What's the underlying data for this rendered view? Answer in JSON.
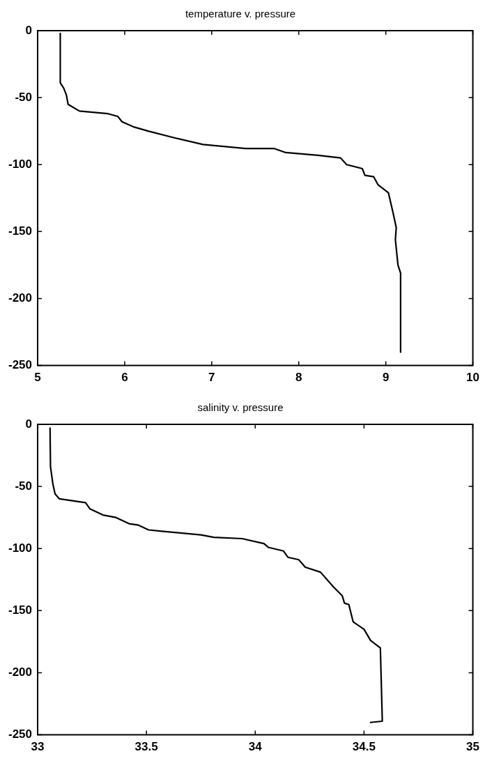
{
  "chart_data": [
    {
      "type": "line",
      "title": "temperature v. pressure",
      "x": [
        5.26,
        5.26,
        5.3,
        5.33,
        5.35,
        5.48,
        5.81,
        5.92,
        5.97,
        6.11,
        6.27,
        6.57,
        6.9,
        7.39,
        7.72,
        7.85,
        8.22,
        8.48,
        8.55,
        8.73,
        8.76,
        8.86,
        8.91,
        9.03,
        9.08,
        9.12,
        9.11,
        9.14,
        9.17,
        9.17
      ],
      "series": [
        {
          "color": "#000000",
          "values": [
            -2,
            -39,
            -43,
            -48,
            -55,
            -60,
            -62,
            -64,
            -68,
            -72,
            -75,
            -80,
            -85,
            -88,
            -88,
            -91,
            -93,
            -95,
            -100,
            -103,
            -108,
            -109,
            -115,
            -121,
            -135,
            -147,
            -156,
            -175,
            -181,
            -240
          ]
        }
      ],
      "xlim": [
        5,
        10
      ],
      "xticks": [
        5,
        6,
        7,
        8,
        9,
        10
      ],
      "ylim": [
        -250,
        0
      ],
      "yticks": [
        -250,
        -200,
        -150,
        -100,
        -50,
        0
      ]
    },
    {
      "type": "line",
      "title": "salinity v. pressure",
      "x": [
        33.057,
        33.059,
        33.07,
        33.08,
        33.1,
        33.22,
        33.24,
        33.3,
        33.36,
        33.42,
        33.46,
        33.51,
        33.57,
        33.63,
        33.75,
        33.81,
        33.94,
        34.04,
        34.06,
        34.13,
        34.15,
        34.2,
        34.23,
        34.3,
        34.36,
        34.4,
        34.41,
        34.43,
        34.45,
        34.5,
        34.53,
        34.575,
        34.584,
        34.53
      ],
      "series": [
        {
          "color": "#000000",
          "values": [
            -3,
            -34,
            -48,
            -56,
            -60,
            -63,
            -68,
            -73,
            -75,
            -80,
            -81,
            -85,
            -86,
            -87,
            -89,
            -91,
            -92,
            -96,
            -99,
            -102,
            -107,
            -109,
            -115,
            -119,
            -131,
            -138,
            -144,
            -145,
            -159,
            -165,
            -174,
            -180,
            -239,
            -240
          ]
        }
      ],
      "xlim": [
        33,
        35
      ],
      "xticks": [
        33,
        33.5,
        34,
        34.5,
        35
      ],
      "ylim": [
        -250,
        0
      ],
      "yticks": [
        -250,
        -200,
        -150,
        -100,
        -50,
        0
      ]
    }
  ]
}
